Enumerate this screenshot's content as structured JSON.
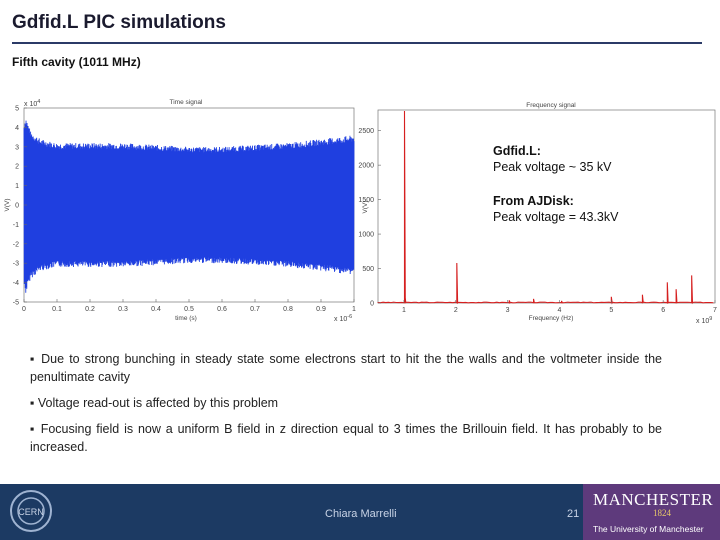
{
  "slide": {
    "title": "Gdfid.L PIC simulations",
    "subtitle": "Fifth cavity (1011 MHz)",
    "page_number": "21",
    "presenter": "Chiara Marrelli"
  },
  "annotation": {
    "gdfidl_heading": "Gdfid.L:",
    "gdfidl_value": "Peak voltage ~  35 kV",
    "ajdisk_heading": "From AJDisk:",
    "ajdisk_value": "Peak voltage =  43.3kV"
  },
  "bullets": [
    "▪ Due to strong bunching in steady state some electrons start to hit the the walls and the voltmeter inside the penultimate cavity",
    "▪ Voltage read-out is affected by this problem",
    "▪ Focusing field is now a uniform B field in z direction equal to 3 times the Brillouin field. It has probably to be increased."
  ],
  "logos": {
    "cern": "CERN",
    "uom_main": "MANCHESTER",
    "uom_year": "1824",
    "uom_sub": "The University of Manchester"
  },
  "colors": {
    "time_signal": "#1f3fe0",
    "frequency_signal": "#d62020",
    "footer": "#1c3a63",
    "uom": "#5e3a7c"
  },
  "chart_data": [
    {
      "type": "line",
      "title": "Time signal",
      "xlabel": "time (s)",
      "ylabel": "V(V)",
      "x_multiplier": "x 10^-6",
      "y_multiplier": "x 10^4",
      "xlim": [
        0,
        1
      ],
      "ylim": [
        -5,
        5
      ],
      "x_ticks": [
        "0",
        "0.1",
        "0.2",
        "0.3",
        "0.4",
        "0.5",
        "0.6",
        "0.7",
        "0.8",
        "0.9",
        "1"
      ],
      "y_ticks": [
        "5",
        "4",
        "3",
        "2",
        "1",
        "0",
        "-1",
        "-2",
        "-3",
        "-4",
        "-5"
      ],
      "envelope": {
        "t": [
          0,
          0.005,
          0.02,
          0.05,
          0.1,
          0.2,
          0.3,
          0.4,
          0.5,
          0.6,
          0.7,
          0.8,
          0.9,
          1
        ],
        "amplitude": [
          4.2,
          4.6,
          3.8,
          3.4,
          3.2,
          3.2,
          3.2,
          3.1,
          3.0,
          3.0,
          3.1,
          3.2,
          3.4,
          3.6
        ]
      }
    },
    {
      "type": "line",
      "title": "Frequency signal",
      "xlabel": "Frequency (Hz)",
      "ylabel": "V(V)",
      "x_multiplier": "x 10^9",
      "xlim": [
        0.5,
        7
      ],
      "ylim": [
        0,
        2800
      ],
      "x_ticks": [
        "1",
        "2",
        "3",
        "4",
        "5",
        "6",
        "7"
      ],
      "y_ticks": [
        "0",
        "500",
        "1000",
        "1500",
        "2000",
        "2500"
      ],
      "peaks": [
        {
          "x": 1.011,
          "y": 2900
        },
        {
          "x": 1.02,
          "y": 120
        },
        {
          "x": 2.02,
          "y": 580
        },
        {
          "x": 3.03,
          "y": 40
        },
        {
          "x": 3.5,
          "y": 60
        },
        {
          "x": 4.04,
          "y": 30
        },
        {
          "x": 5.0,
          "y": 90
        },
        {
          "x": 5.6,
          "y": 120
        },
        {
          "x": 6.08,
          "y": 300
        },
        {
          "x": 6.25,
          "y": 200
        },
        {
          "x": 6.55,
          "y": 400
        }
      ]
    }
  ]
}
